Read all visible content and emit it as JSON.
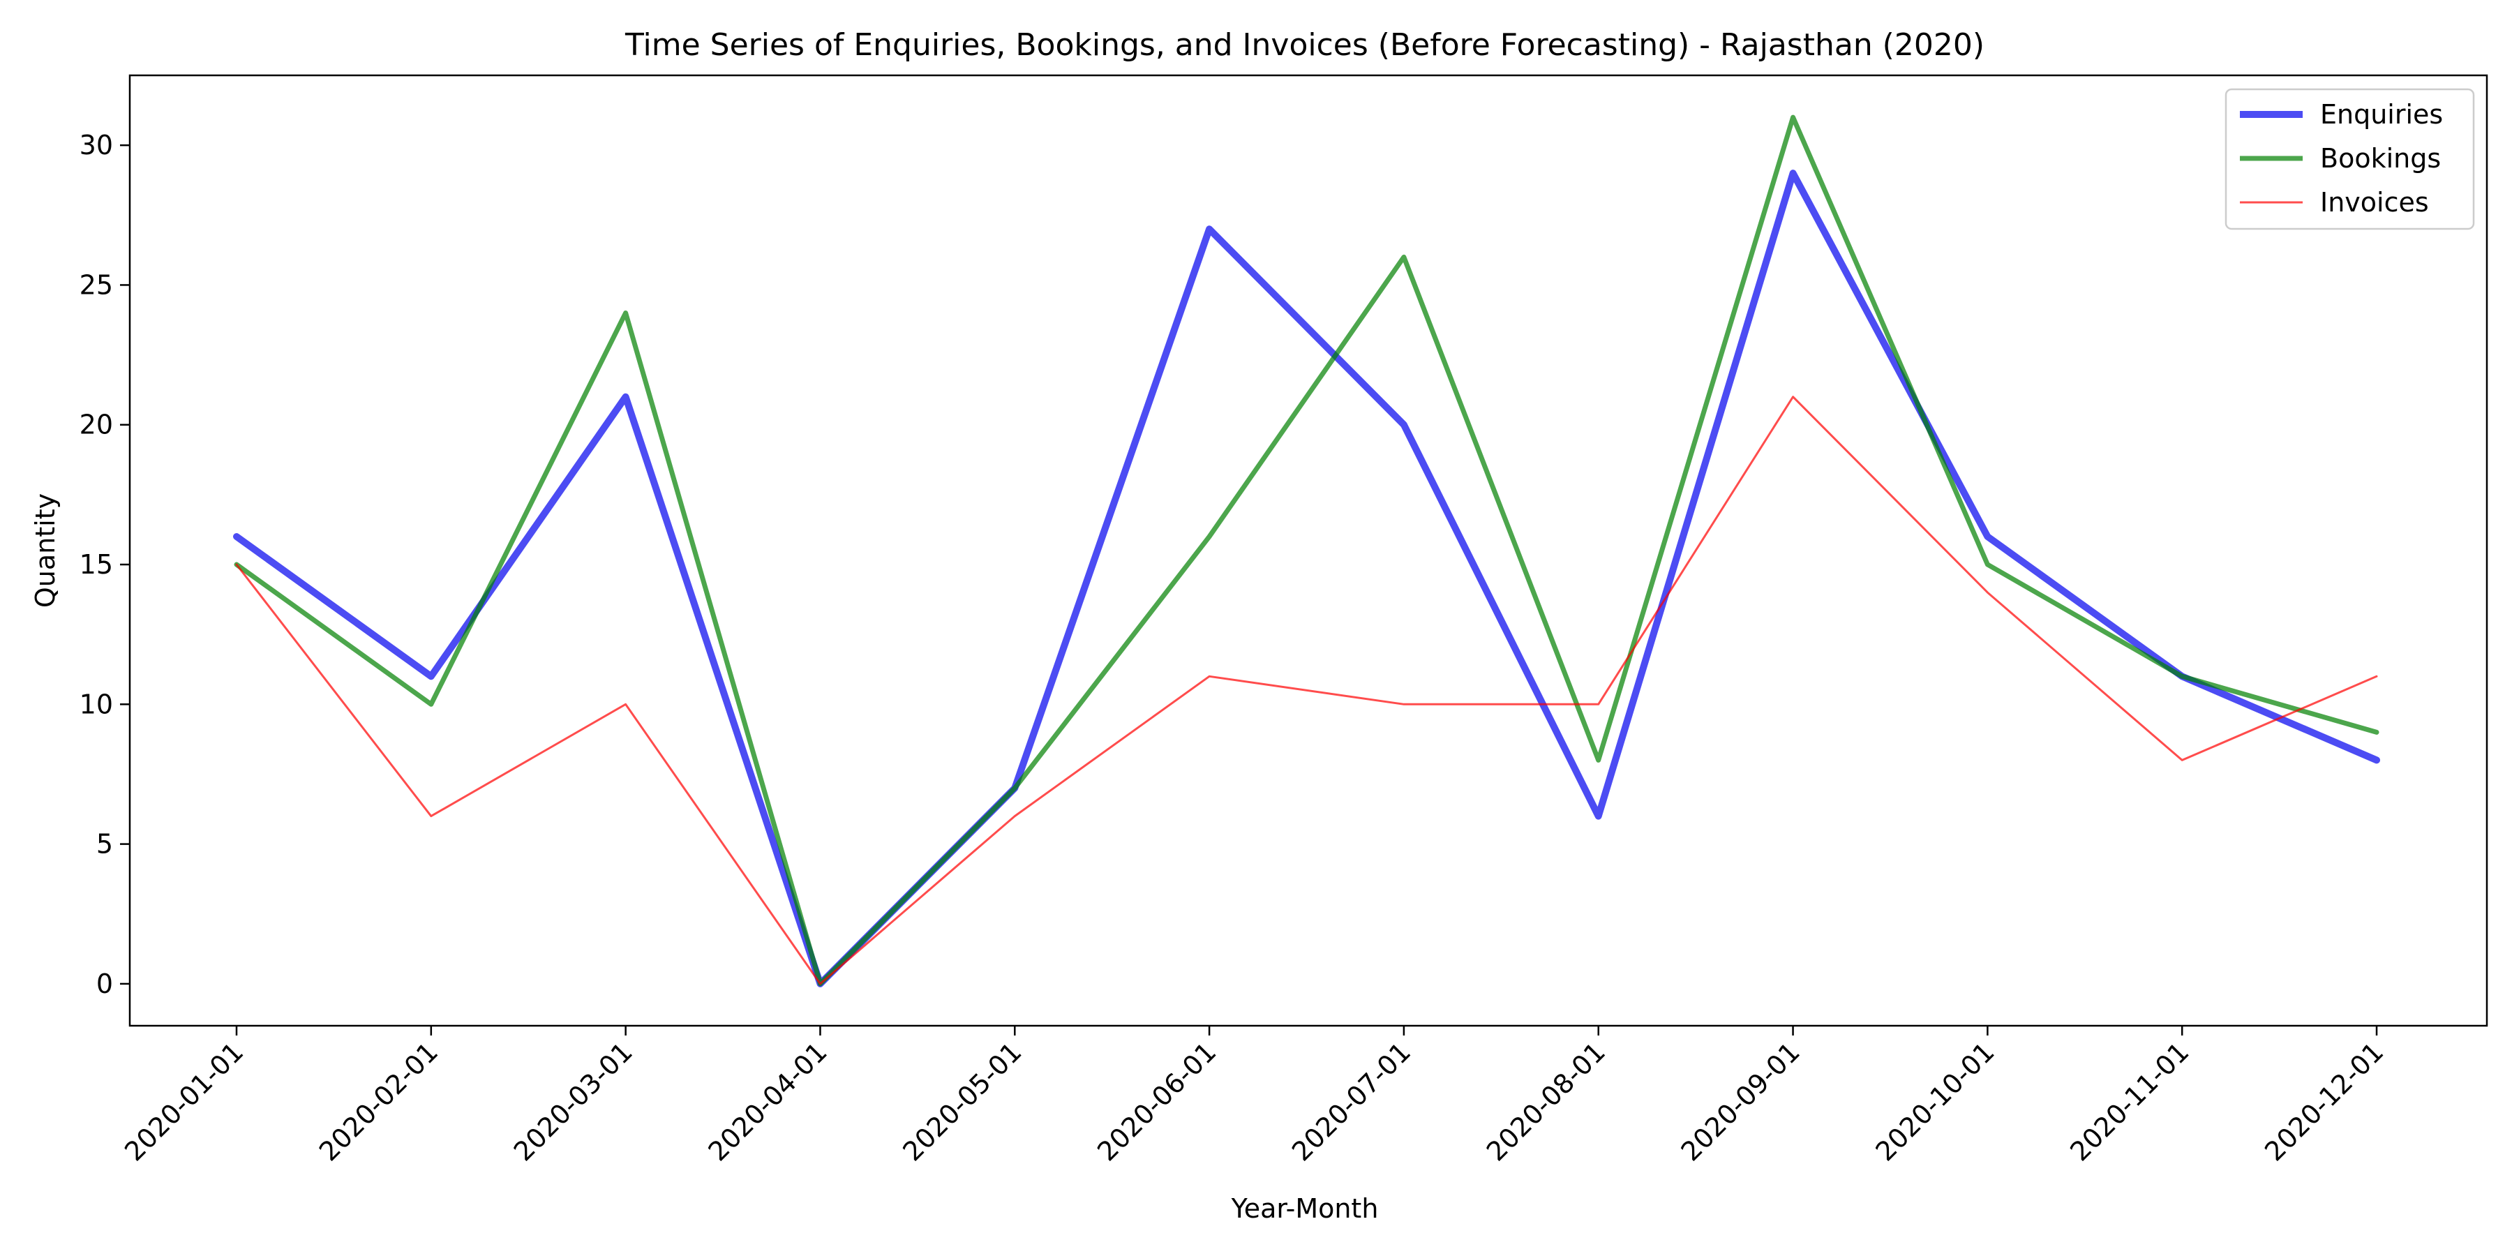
{
  "chart_data": {
    "type": "line",
    "title": "Time Series of Enquiries, Bookings, and Invoices (Before Forecasting) - Rajasthan (2020)",
    "xlabel": "Year-Month",
    "ylabel": "Quantity",
    "categories": [
      "2020-01-01",
      "2020-02-01",
      "2020-03-01",
      "2020-04-01",
      "2020-05-01",
      "2020-06-01",
      "2020-07-01",
      "2020-08-01",
      "2020-09-01",
      "2020-10-01",
      "2020-11-01",
      "2020-12-01"
    ],
    "yticks": [
      0,
      5,
      10,
      15,
      20,
      25,
      30
    ],
    "ylim": [
      -1.5,
      32.5
    ],
    "grid": false,
    "legend_position": "top-right",
    "series": [
      {
        "name": "Enquiries",
        "color": "#0000ee",
        "values": [
          16,
          11,
          21,
          0,
          7,
          27,
          20,
          6,
          29,
          16,
          11,
          8
        ]
      },
      {
        "name": "Bookings",
        "color": "#008000",
        "values": [
          15,
          10,
          24,
          0,
          7,
          16,
          26,
          8,
          31,
          15,
          11,
          9
        ]
      },
      {
        "name": "Invoices",
        "color": "#ff0000",
        "values": [
          15,
          6,
          10,
          0,
          6,
          11,
          10,
          10,
          21,
          14,
          8,
          11
        ]
      }
    ]
  }
}
